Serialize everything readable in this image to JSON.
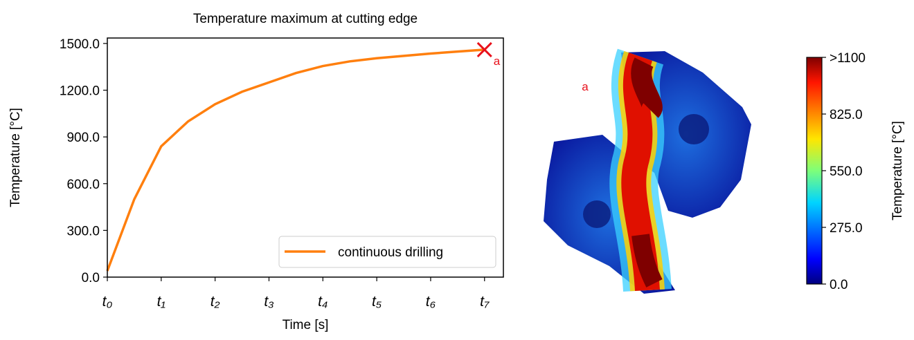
{
  "chart_data": {
    "type": "line",
    "title": "Temperature maximum at cutting edge",
    "xlabel": "Time [s]",
    "ylabel": "Temperature [°C]",
    "x": [
      0,
      0.5,
      1,
      1.5,
      2,
      2.5,
      3,
      3.5,
      4,
      4.5,
      5,
      5.5,
      6,
      6.5,
      7
    ],
    "series": [
      {
        "name": "continuous drilling",
        "color": "#ff7f0e",
        "values": [
          40,
          500,
          840,
          1000,
          1110,
          1190,
          1250,
          1310,
          1355,
          1385,
          1405,
          1420,
          1435,
          1448,
          1460
        ]
      }
    ],
    "xlim": [
      0,
      7.35
    ],
    "ylim": [
      0,
      1535
    ],
    "xticks": [
      {
        "value": 0,
        "label": "t₀"
      },
      {
        "value": 1,
        "label": "t₁"
      },
      {
        "value": 2,
        "label": "t₂"
      },
      {
        "value": 3,
        "label": "t₃"
      },
      {
        "value": 4,
        "label": "t₄"
      },
      {
        "value": 5,
        "label": "t₅"
      },
      {
        "value": 6,
        "label": "t₆"
      },
      {
        "value": 7,
        "label": "t₇"
      }
    ],
    "yticks": [
      {
        "value": 0,
        "label": "0.0"
      },
      {
        "value": 300,
        "label": "300.0"
      },
      {
        "value": 600,
        "label": "600.0"
      },
      {
        "value": 900,
        "label": "900.0"
      },
      {
        "value": 1200,
        "label": "1200.0"
      },
      {
        "value": 1500,
        "label": "1500.0"
      }
    ],
    "legend": "lower right",
    "marker_label": "a",
    "marker_color": "#e8111b",
    "image_label": "a",
    "colorbar": {
      "label": "Temperature [°C]",
      "colormap": "jet",
      "lim": [
        0,
        1100
      ],
      "ticks": [
        {
          "value": 0,
          "label": "0.0"
        },
        {
          "value": 275,
          "label": "275.0"
        },
        {
          "value": 550,
          "label": "550.0"
        },
        {
          "value": 825,
          "label": "825.0"
        },
        {
          "value": 1100,
          "label": ">1100"
        }
      ]
    }
  }
}
